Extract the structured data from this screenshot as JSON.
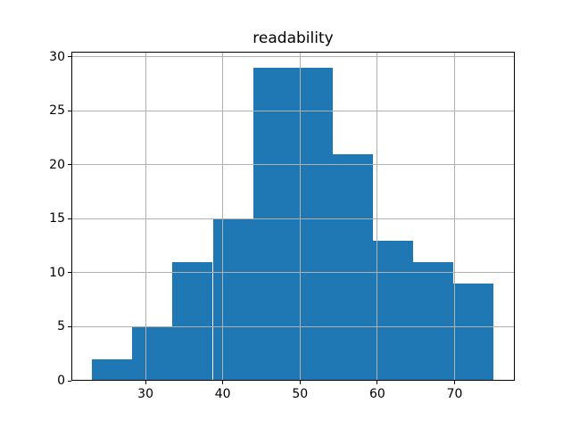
{
  "chart_data": {
    "type": "histogram",
    "title": "readability",
    "xlabel": "",
    "ylabel": "",
    "bin_edges": [
      23.1,
      28.3,
      33.5,
      38.7,
      43.9,
      49.0,
      54.2,
      59.4,
      64.6,
      69.8,
      75.0
    ],
    "counts": [
      2,
      5,
      11,
      15,
      29,
      29,
      21,
      13,
      11,
      9
    ],
    "total_count": 145,
    "x_ticks": [
      30,
      40,
      50,
      60,
      70
    ],
    "y_ticks": [
      0,
      5,
      10,
      15,
      20,
      25,
      30
    ],
    "xlim": [
      20.4,
      77.8
    ],
    "ylim": [
      0,
      30.45
    ],
    "grid": true,
    "legend": null,
    "colors": {
      "bar": "#1f77b4",
      "grid": "#b0b0b0",
      "spine": "#000000",
      "text": "#000000",
      "background": "#ffffff"
    }
  }
}
